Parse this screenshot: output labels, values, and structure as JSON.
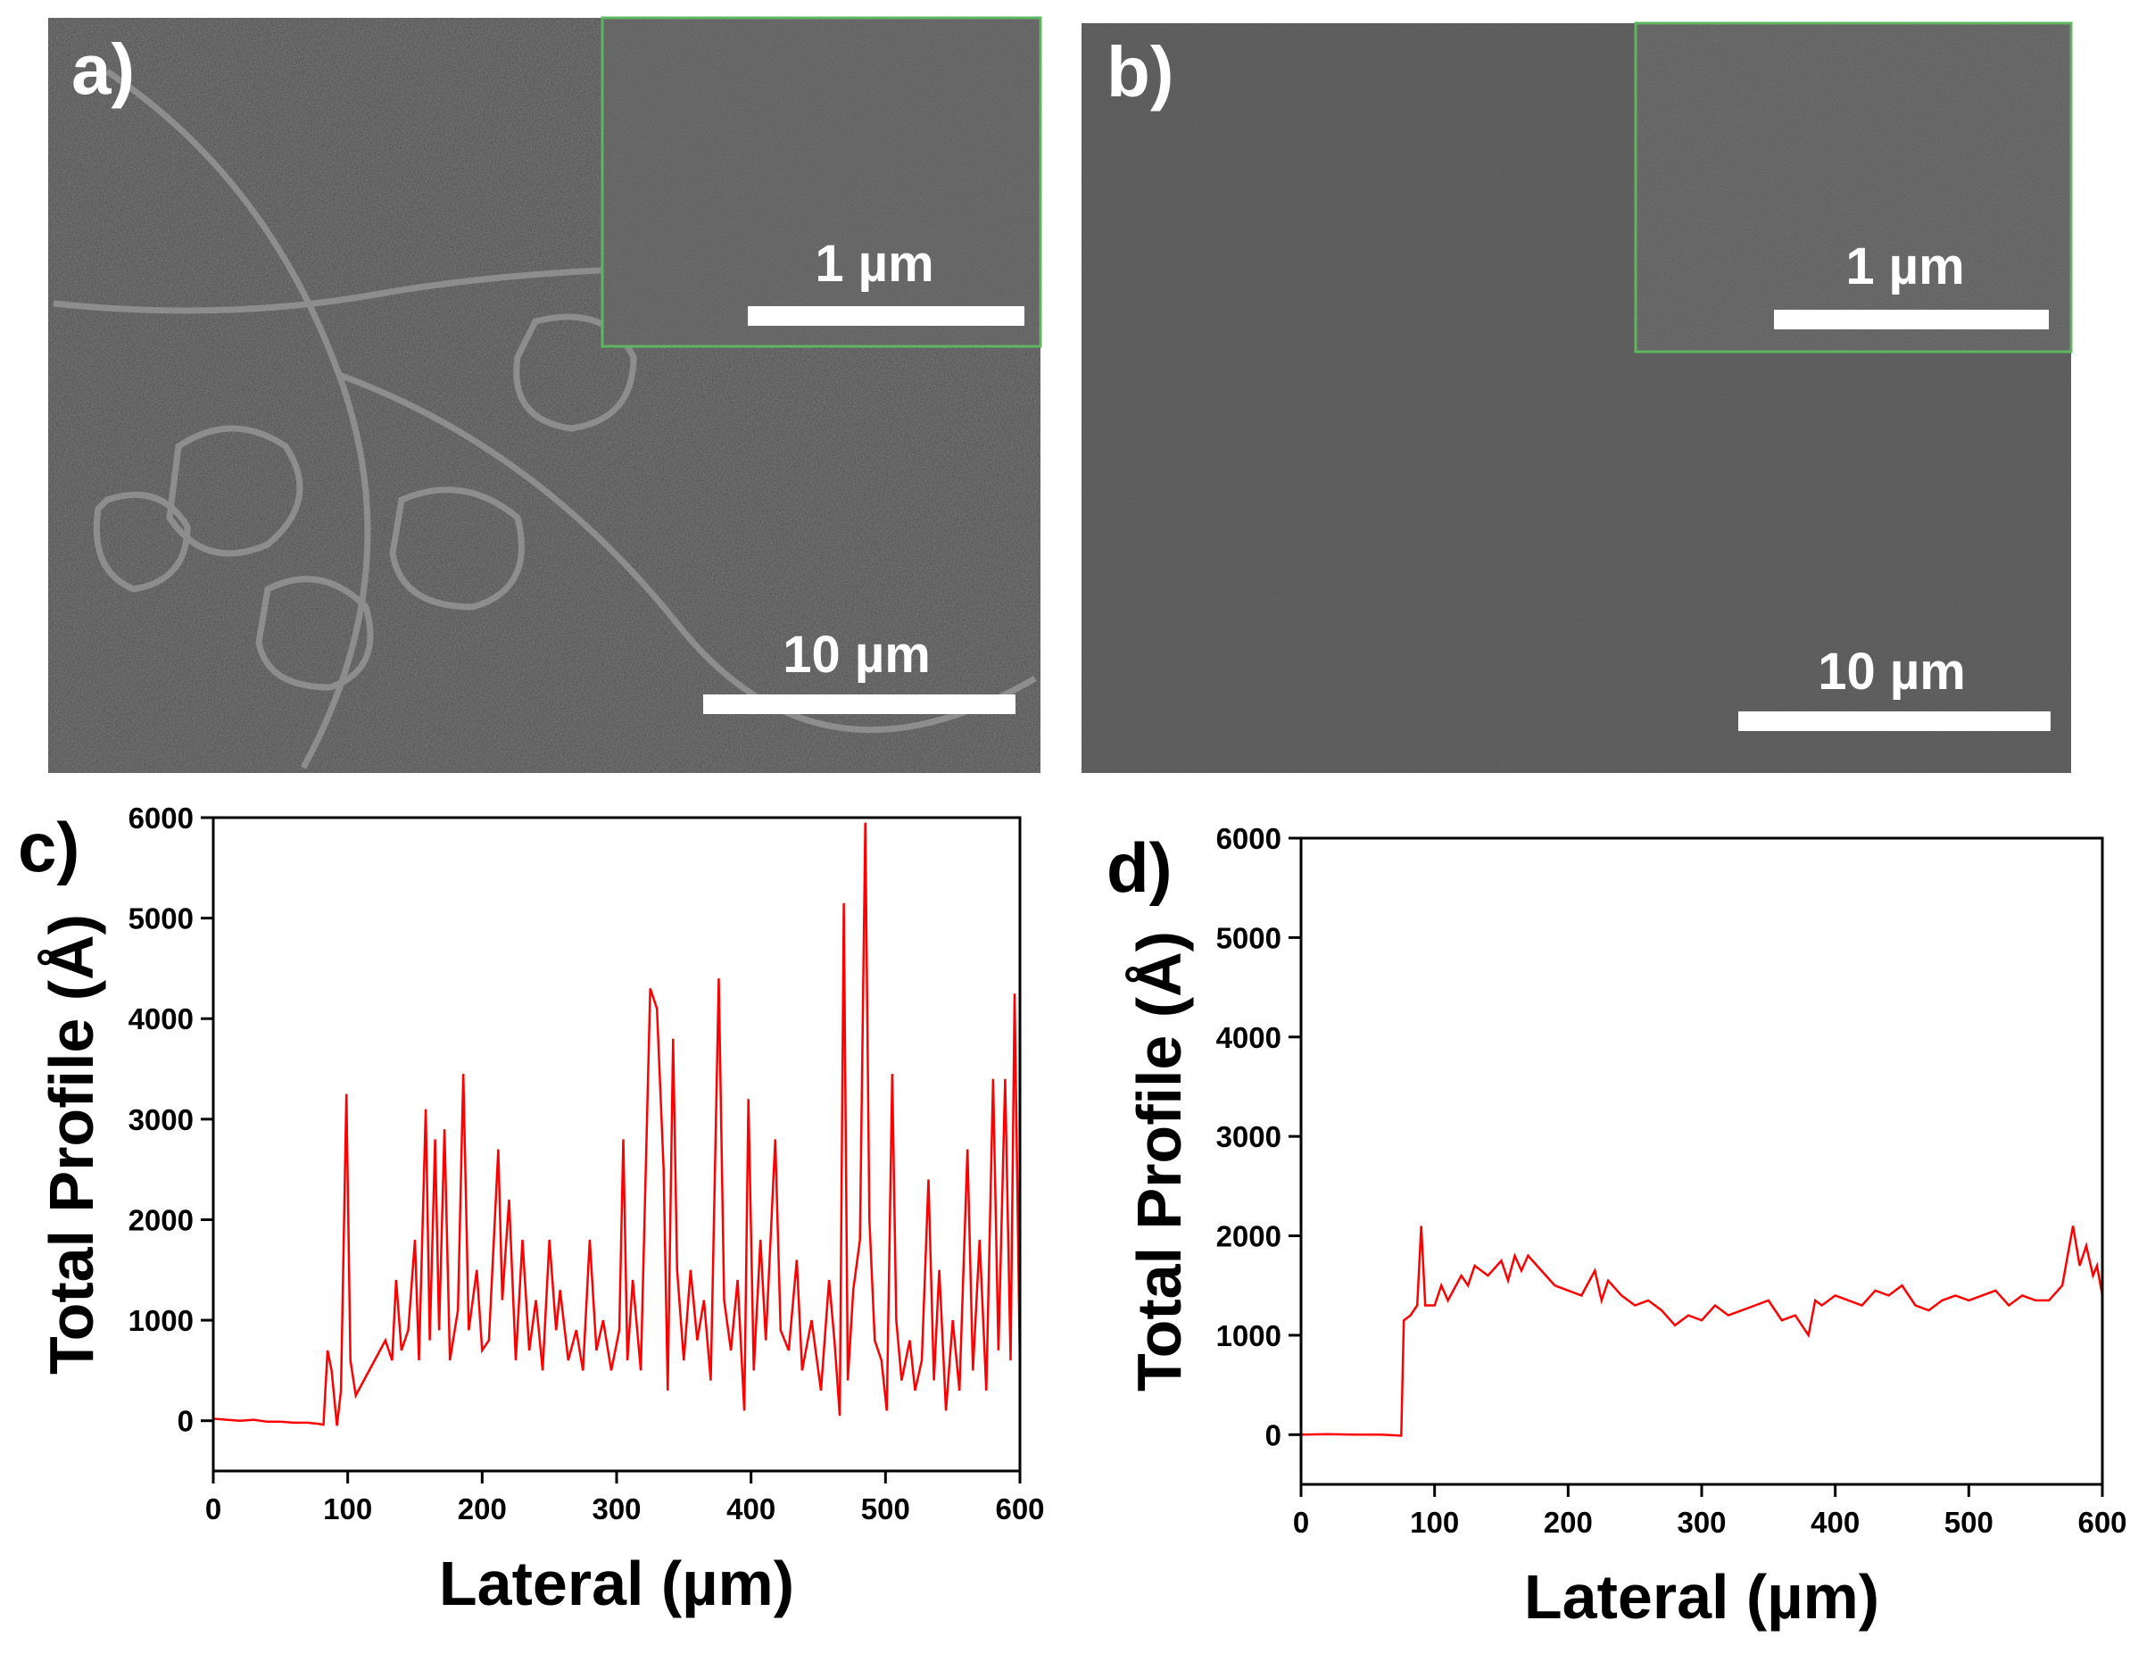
{
  "panels": [
    {
      "label": "a)",
      "scale_bar": "10 µm",
      "inset_scale_bar": "1 µm"
    },
    {
      "label": "b)",
      "scale_bar": "10 µm",
      "inset_scale_bar": "1 µm"
    }
  ],
  "chart_data": [
    {
      "type": "line",
      "panel_label": "c)",
      "xlabel": "Lateral (µm)",
      "ylabel": "Total Profile (Å)",
      "color": "#ff0000",
      "xlim": [
        0,
        600
      ],
      "xticks": [
        0,
        100,
        200,
        300,
        400,
        500,
        600
      ],
      "ylim": [
        -500,
        6000
      ],
      "yticks": [
        0,
        1000,
        2000,
        3000,
        4000,
        5000,
        6000
      ],
      "x": [
        0,
        10,
        20,
        30,
        40,
        50,
        60,
        70,
        78,
        82,
        85,
        88,
        92,
        95,
        99,
        102,
        106,
        112,
        120,
        128,
        133,
        136,
        140,
        145,
        150,
        153,
        158,
        161,
        165,
        168,
        172,
        176,
        182,
        186,
        190,
        196,
        200,
        205,
        212,
        215,
        220,
        225,
        230,
        235,
        240,
        245,
        250,
        255,
        258,
        264,
        270,
        275,
        280,
        285,
        290,
        296,
        302,
        305,
        308,
        312,
        318,
        325,
        330,
        335,
        338,
        342,
        345,
        350,
        355,
        360,
        365,
        370,
        376,
        380,
        385,
        390,
        395,
        398,
        402,
        407,
        411,
        418,
        422,
        428,
        434,
        438,
        445,
        452,
        458,
        462,
        466,
        469,
        472,
        476,
        481,
        485,
        488,
        492,
        497,
        501,
        505,
        508,
        512,
        518,
        522,
        527,
        532,
        536,
        540,
        545,
        550,
        555,
        561,
        565,
        570,
        575,
        580,
        584,
        589,
        593,
        596,
        600
      ],
      "values": [
        20,
        10,
        0,
        10,
        -10,
        -10,
        -20,
        -20,
        -30,
        -40,
        700,
        500,
        -50,
        300,
        3250,
        600,
        250,
        400,
        600,
        800,
        600,
        1400,
        700,
        900,
        1800,
        600,
        3100,
        800,
        2800,
        900,
        2900,
        600,
        1100,
        3450,
        900,
        1500,
        700,
        800,
        2700,
        1200,
        2200,
        600,
        1800,
        700,
        1200,
        500,
        1800,
        900,
        1300,
        600,
        900,
        500,
        1800,
        700,
        1000,
        500,
        900,
        2800,
        600,
        1400,
        500,
        4300,
        4100,
        2500,
        300,
        3800,
        1500,
        600,
        1500,
        800,
        1200,
        400,
        4400,
        1200,
        700,
        1400,
        100,
        3200,
        500,
        1800,
        800,
        2800,
        900,
        700,
        1600,
        500,
        1000,
        300,
        1400,
        800,
        50,
        5150,
        400,
        1300,
        1800,
        5950,
        2000,
        800,
        600,
        100,
        3450,
        1000,
        400,
        800,
        300,
        600,
        2400,
        400,
        1500,
        100,
        1000,
        300,
        2700,
        500,
        1800,
        300,
        3400,
        700,
        3400,
        600,
        4250,
        500
      ]
    },
    {
      "type": "line",
      "panel_label": "d)",
      "xlabel": "Lateral (µm)",
      "ylabel": "Total Profile (Å)",
      "color": "#ff0000",
      "xlim": [
        0,
        600
      ],
      "xticks": [
        0,
        100,
        200,
        300,
        400,
        500,
        600
      ],
      "ylim": [
        -500,
        6000
      ],
      "yticks": [
        0,
        1000,
        2000,
        3000,
        4000,
        5000,
        6000
      ],
      "x": [
        0,
        20,
        40,
        60,
        75,
        77,
        82,
        87,
        90,
        93,
        100,
        105,
        110,
        120,
        125,
        130,
        140,
        150,
        155,
        160,
        165,
        170,
        180,
        190,
        200,
        210,
        220,
        225,
        230,
        240,
        250,
        260,
        270,
        280,
        290,
        300,
        310,
        320,
        330,
        340,
        350,
        360,
        370,
        380,
        385,
        390,
        400,
        410,
        420,
        430,
        440,
        450,
        460,
        470,
        480,
        490,
        500,
        510,
        520,
        530,
        540,
        550,
        560,
        570,
        578,
        583,
        588,
        593,
        596,
        600
      ],
      "values": [
        0,
        5,
        0,
        0,
        -10,
        1150,
        1200,
        1300,
        2100,
        1300,
        1300,
        1500,
        1350,
        1600,
        1500,
        1700,
        1600,
        1750,
        1550,
        1800,
        1650,
        1800,
        1650,
        1500,
        1450,
        1400,
        1650,
        1350,
        1550,
        1400,
        1300,
        1350,
        1250,
        1100,
        1200,
        1150,
        1300,
        1200,
        1250,
        1300,
        1350,
        1150,
        1200,
        1000,
        1350,
        1300,
        1400,
        1350,
        1300,
        1450,
        1400,
        1500,
        1300,
        1250,
        1350,
        1400,
        1350,
        1400,
        1450,
        1300,
        1400,
        1350,
        1350,
        1500,
        2100,
        1700,
        1900,
        1600,
        1700,
        1400
      ]
    }
  ]
}
